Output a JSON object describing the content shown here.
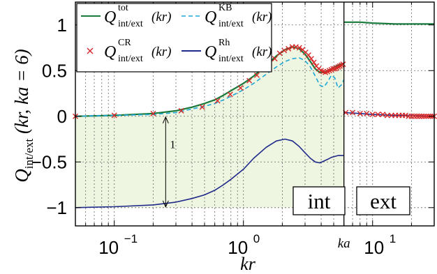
{
  "chart_data": {
    "type": "line",
    "xscale": "log",
    "xlim": [
      0.05,
      30
    ],
    "ylim": [
      -1.2,
      1.25
    ],
    "grid": true,
    "legend_position": "top-left",
    "x_tick_labels": [
      "10",
      "10",
      "ka",
      "10"
    ],
    "x_tick_exponents": [
      "−1",
      "0",
      "",
      "1"
    ],
    "y_tick_labels": [
      "−1",
      "−0.5",
      "0",
      "0.5",
      "1"
    ],
    "y_tick_values": [
      -1,
      -0.5,
      0,
      0.5,
      1
    ],
    "xlabel": "kr",
    "ylabel_main": "Q",
    "ylabel_sub": "int/ext",
    "ylabel_args": "(kr, ka = 6)",
    "legend": [
      {
        "symbol": "Q",
        "sup": "tot",
        "sub": "int/ext",
        "arg": "(kr)",
        "style": "solid",
        "color": "#1a7a3c"
      },
      {
        "symbol": "Q",
        "sup": "KB",
        "sub": "int/ext",
        "arg": "(kr)",
        "style": "dashed",
        "color": "#1ea7d9"
      },
      {
        "symbol": "Q",
        "sup": "CR",
        "sub": "int/ext",
        "arg": "(kr)",
        "style": "marker",
        "color": "#d62728"
      },
      {
        "symbol": "Q",
        "sup": "Rh",
        "sub": "int/ext",
        "arg": "(kr)",
        "style": "solid",
        "color": "#1f2a8a"
      }
    ],
    "annotations": {
      "interval_label": "1",
      "interval_from": -1,
      "interval_to": 0,
      "interval_at": 0.25,
      "region_int": "int",
      "region_ext": "ext",
      "ka_boundary": 6
    },
    "series": [
      {
        "name": "Qtot int/ext(kr)",
        "color": "#1a7a3c",
        "interior": {
          "x": [
            0.05,
            0.1,
            0.2,
            0.3,
            0.4,
            0.5,
            0.6,
            0.7,
            0.8,
            1.0,
            1.2,
            1.5,
            1.8,
            2.1,
            2.4,
            2.7,
            3.0,
            3.3,
            3.6,
            3.9,
            4.2,
            4.5,
            4.8,
            5.1,
            5.4,
            5.7,
            6.0
          ],
          "y": [
            0.0,
            0.01,
            0.03,
            0.06,
            0.1,
            0.14,
            0.18,
            0.23,
            0.28,
            0.36,
            0.44,
            0.56,
            0.66,
            0.73,
            0.76,
            0.74,
            0.68,
            0.6,
            0.52,
            0.48,
            0.48,
            0.5,
            0.52,
            0.54,
            0.56,
            0.57,
            0.58
          ]
        },
        "exterior": {
          "x": [
            6.0,
            8,
            10,
            15,
            20,
            30
          ],
          "y": [
            1.03,
            1.03,
            1.02,
            1.01,
            1.01,
            1.01
          ]
        }
      },
      {
        "name": "QKB int/ext(kr)",
        "color": "#1ea7d9",
        "interior": {
          "x": [
            0.05,
            0.1,
            0.2,
            0.3,
            0.4,
            0.5,
            0.6,
            0.7,
            0.8,
            1.0,
            1.2,
            1.5,
            1.8,
            2.1,
            2.4,
            2.7,
            3.0,
            3.3,
            3.6,
            3.9,
            4.2,
            4.5,
            4.8,
            5.1,
            5.4,
            5.7,
            6.0
          ],
          "y": [
            0.0,
            0.01,
            0.02,
            0.04,
            0.08,
            0.11,
            0.14,
            0.18,
            0.22,
            0.29,
            0.36,
            0.46,
            0.54,
            0.6,
            0.63,
            0.64,
            0.61,
            0.54,
            0.44,
            0.34,
            0.32,
            0.38,
            0.45,
            0.42,
            0.31,
            0.34,
            0.4
          ]
        },
        "exterior": {
          "x": [
            6.0,
            8,
            10,
            15,
            20,
            30
          ],
          "y": [
            0.04,
            0.03,
            0.02,
            0.01,
            0.01,
            0.0
          ]
        }
      },
      {
        "name": "QRh int/ext(kr)",
        "color": "#1f2a8a",
        "interior": {
          "x": [
            0.05,
            0.1,
            0.2,
            0.3,
            0.4,
            0.5,
            0.6,
            0.7,
            0.8,
            1.0,
            1.2,
            1.5,
            1.8,
            2.1,
            2.4,
            2.7,
            3.0,
            3.3,
            3.6,
            3.9,
            4.2,
            4.5,
            4.8,
            5.1,
            5.4,
            5.7,
            6.0
          ],
          "y": [
            -1.0,
            -0.99,
            -0.97,
            -0.94,
            -0.9,
            -0.86,
            -0.81,
            -0.75,
            -0.69,
            -0.58,
            -0.46,
            -0.34,
            -0.27,
            -0.25,
            -0.27,
            -0.33,
            -0.4,
            -0.46,
            -0.5,
            -0.51,
            -0.49,
            -0.47,
            -0.45,
            -0.44,
            -0.43,
            -0.43,
            -0.43
          ]
        },
        "exterior": {
          "x": [
            6.0,
            8,
            10,
            15,
            20,
            30
          ],
          "y": [
            0.04,
            0.03,
            0.02,
            0.01,
            0.01,
            0.0
          ]
        }
      },
      {
        "name": "QCR int/ext(kr)",
        "color": "#d62728",
        "marker": "x",
        "x": [
          0.05,
          0.1,
          0.2,
          0.33,
          0.48,
          0.63,
          0.79,
          0.95,
          1.11,
          1.27,
          1.43,
          1.59,
          1.75,
          1.91,
          2.07,
          2.23,
          2.39,
          2.55,
          2.71,
          2.87,
          3.03,
          3.19,
          3.35,
          3.51,
          3.67,
          3.83,
          3.99,
          4.15,
          4.31,
          4.47,
          4.63,
          4.79,
          4.95,
          5.11,
          5.27,
          5.43,
          5.59,
          5.75,
          5.91,
          6.2,
          7.0,
          8.0,
          9.0,
          10.0,
          11.0,
          12.0,
          13.0,
          14.0,
          15.0,
          16.0,
          17.0,
          18.0,
          19.0,
          20.0,
          21.0,
          22.0,
          23.0,
          24.0,
          25.0,
          26.0,
          27.0,
          28.0,
          29.0,
          30.0
        ],
        "y": [
          0.0,
          0.01,
          0.03,
          0.06,
          0.1,
          0.17,
          0.24,
          0.31,
          0.39,
          0.45,
          0.52,
          0.58,
          0.63,
          0.69,
          0.72,
          0.74,
          0.76,
          0.76,
          0.75,
          0.73,
          0.7,
          0.67,
          0.63,
          0.59,
          0.55,
          0.52,
          0.5,
          0.49,
          0.48,
          0.49,
          0.5,
          0.51,
          0.52,
          0.52,
          0.53,
          0.54,
          0.55,
          0.56,
          0.57,
          0.04,
          0.04,
          0.03,
          0.03,
          0.02,
          0.02,
          0.02,
          0.01,
          0.01,
          0.01,
          0.01,
          0.01,
          0.01,
          0.0,
          0.0,
          0.0,
          0.0,
          0.0,
          0.0,
          0.0,
          0.0,
          0.0,
          0.0,
          0.0,
          0.0
        ]
      }
    ]
  }
}
